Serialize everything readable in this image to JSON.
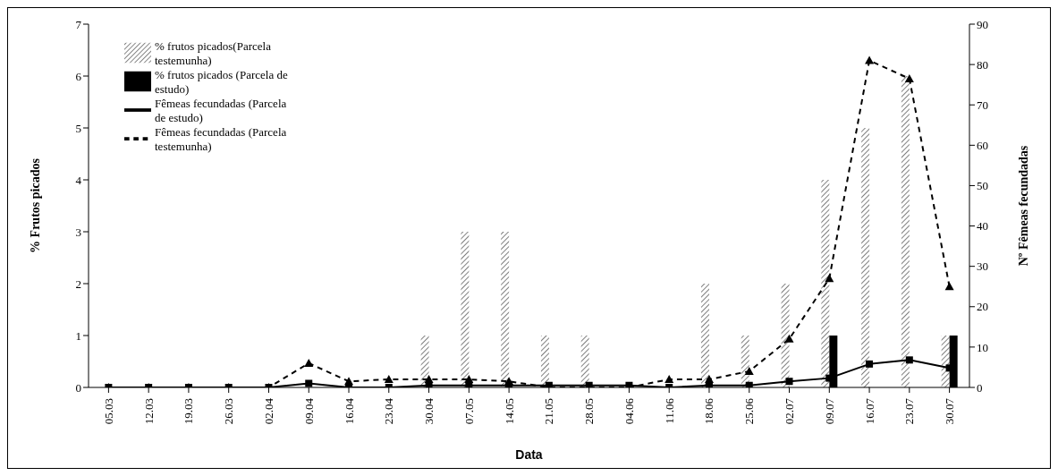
{
  "chart_data": {
    "type": "bar",
    "xlabel": "Data",
    "ylabel": "% Frutos picados",
    "y2label": "Nº Fêmeas fecundadas",
    "categories": [
      "05.03",
      "12.03",
      "19.03",
      "26.03",
      "02.04",
      "09.04",
      "16.04",
      "23.04",
      "30.04",
      "07.05",
      "14.05",
      "21.05",
      "28.05",
      "04.06",
      "11.06",
      "18.06",
      "25.06",
      "02.07",
      "09.07",
      "16.07",
      "23.07",
      "30.07"
    ],
    "series": [
      {
        "name": "% frutos picados(Parcela testemunha)",
        "color": "#ffffff",
        "values": [
          0,
          0,
          0,
          0,
          0,
          0,
          0,
          0,
          1,
          3,
          3,
          1,
          1,
          0,
          0,
          2,
          1,
          2,
          4,
          5,
          6,
          1
        ]
      },
      {
        "name": "% frutos picados (Parcela de estudo)",
        "color": "#000000",
        "values": [
          0,
          0,
          0,
          0,
          0,
          0,
          0,
          0,
          0,
          0,
          0,
          0,
          0,
          0,
          0,
          0,
          0,
          0,
          1,
          0,
          0,
          1
        ]
      },
      {
        "name": "Fêmeas fecundadas (Parcela de estudo)",
        "type": "line",
        "axis": "y2",
        "color": "#000000",
        "marker": "square",
        "line_style": "solid",
        "values": [
          0,
          0,
          0,
          0,
          0,
          1,
          0,
          0,
          0.5,
          0.5,
          0.5,
          0.5,
          0.5,
          0.5,
          0,
          0.5,
          0.5,
          1.5,
          2.3,
          5.8,
          6.8,
          4.8
        ]
      },
      {
        "name": "Fêmeas fecundadas (Parcela testemunha)",
        "type": "line",
        "axis": "y2",
        "color": "#000000",
        "marker": "triangle",
        "line_style": "dashed",
        "values": [
          0,
          0,
          0,
          0,
          0,
          6,
          1.5,
          2,
          2,
          2,
          1.5,
          0,
          0,
          0,
          2,
          2,
          4,
          12,
          27,
          81,
          76.5,
          25
        ]
      }
    ],
    "ylim": [
      0,
      7
    ],
    "yticks": [
      0,
      1,
      2,
      3,
      4,
      5,
      6,
      7
    ],
    "y2lim": [
      0,
      90
    ],
    "y2ticks": [
      0,
      10,
      20,
      30,
      40,
      50,
      60,
      70,
      80,
      90
    ],
    "legend": "top left",
    "grid": false
  }
}
